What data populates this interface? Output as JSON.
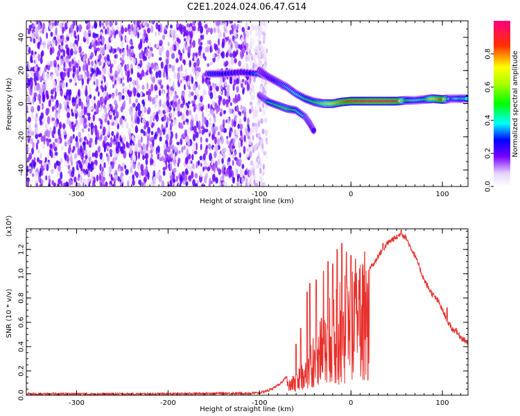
{
  "title": "C2E1.2024.024.06.47.G14",
  "chart_data": [
    {
      "type": "heatmap",
      "xlabel": "Height of straight line (km)",
      "ylabel": "Frequency (Hz)",
      "xlim": [
        -355,
        128
      ],
      "ylim": [
        -50,
        50
      ],
      "xticks": [
        -300,
        -200,
        -100,
        0,
        100
      ],
      "yticks": [
        -40,
        -20,
        0,
        20,
        40
      ],
      "xtick_labels": [
        "-300",
        "-200",
        "-100",
        "0",
        "100"
      ],
      "ytick_labels": [
        "-40",
        "-20",
        "0",
        "20",
        "40"
      ],
      "noise_region": {
        "x": [
          -355,
          -100
        ],
        "y": [
          -50,
          50
        ]
      },
      "ridge": [
        {
          "x": -100,
          "y": 20,
          "amp": 0.15
        },
        {
          "x": -90,
          "y": 16,
          "amp": 0.22
        },
        {
          "x": -80,
          "y": 13,
          "amp": 0.3
        },
        {
          "x": -70,
          "y": 10,
          "amp": 0.35
        },
        {
          "x": -60,
          "y": 6,
          "amp": 0.38
        },
        {
          "x": -50,
          "y": 3,
          "amp": 0.45
        },
        {
          "x": -40,
          "y": 1,
          "amp": 0.5
        },
        {
          "x": -30,
          "y": 0,
          "amp": 0.6
        },
        {
          "x": -20,
          "y": 0,
          "amp": 0.72
        },
        {
          "x": -10,
          "y": 1,
          "amp": 0.8
        },
        {
          "x": 0,
          "y": 1.5,
          "amp": 0.88
        },
        {
          "x": 10,
          "y": 1.5,
          "amp": 0.92
        },
        {
          "x": 20,
          "y": 1.5,
          "amp": 0.95
        },
        {
          "x": 30,
          "y": 1.5,
          "amp": 0.95
        },
        {
          "x": 40,
          "y": 1.5,
          "amp": 0.95
        },
        {
          "x": 50,
          "y": 1.5,
          "amp": 0.92
        },
        {
          "x": 60,
          "y": 2,
          "amp": 0.5
        },
        {
          "x": 70,
          "y": 2,
          "amp": 0.4
        },
        {
          "x": 80,
          "y": 2.5,
          "amp": 0.45
        },
        {
          "x": 90,
          "y": 3,
          "amp": 0.7
        },
        {
          "x": 100,
          "y": 2.5,
          "amp": 0.85
        },
        {
          "x": 110,
          "y": 3,
          "amp": 0.3
        },
        {
          "x": 120,
          "y": 3,
          "amp": 0.45
        },
        {
          "x": 128,
          "y": 3,
          "amp": 0.4
        }
      ],
      "branches": [
        [
          {
            "x": -155,
            "y": 18,
            "amp": 0.3
          },
          {
            "x": -140,
            "y": 18,
            "amp": 0.28
          },
          {
            "x": -120,
            "y": 19,
            "amp": 0.2
          },
          {
            "x": -100,
            "y": 18,
            "amp": 0.35
          },
          {
            "x": -90,
            "y": 16,
            "amp": 0.45
          },
          {
            "x": -80,
            "y": 13,
            "amp": 0.5
          },
          {
            "x": -72,
            "y": 10,
            "amp": 0.45
          }
        ],
        [
          {
            "x": -100,
            "y": 5,
            "amp": 0.3
          },
          {
            "x": -95,
            "y": 3,
            "amp": 0.3
          },
          {
            "x": -90,
            "y": 1,
            "amp": 0.45
          },
          {
            "x": -80,
            "y": -1,
            "amp": 0.5
          },
          {
            "x": -70,
            "y": -3,
            "amp": 0.55
          },
          {
            "x": -60,
            "y": -4,
            "amp": 0.45
          },
          {
            "x": -50,
            "y": -8,
            "amp": 0.4
          },
          {
            "x": -45,
            "y": -12,
            "amp": 0.3
          },
          {
            "x": -40,
            "y": -17,
            "amp": 0.2
          }
        ]
      ],
      "colorbar": {
        "label": "Normalized spectral amplitude",
        "range": [
          0,
          1
        ],
        "ticks": [
          0.0,
          0.2,
          0.4,
          0.6,
          0.8
        ],
        "tick_labels": [
          "0.0",
          "0.2",
          "0.4",
          "0.6",
          "0.8"
        ]
      }
    },
    {
      "type": "line",
      "xlabel": "Height of straight line (km)",
      "ylabel": "SNR (10 * v/v)",
      "scale_label": "(x10⁴)",
      "xlim": [
        -355,
        128
      ],
      "ylim": [
        0,
        1.37
      ],
      "xticks": [
        -300,
        -200,
        -100,
        0,
        100
      ],
      "yticks": [
        0.0,
        0.2,
        0.4,
        0.6,
        0.8,
        1.0,
        1.2
      ],
      "xtick_labels": [
        "-300",
        "-200",
        "-100",
        "0",
        "100"
      ],
      "ytick_labels": [
        "0.0",
        "0.2",
        "0.4",
        "0.6",
        "0.8",
        "1.0",
        "1.2"
      ],
      "color": "#e8302c",
      "series": [
        {
          "x": [
            -355,
            -300,
            -250,
            -200,
            -150,
            -110,
            -100,
            -90,
            -80,
            -70,
            -60,
            -55,
            -50,
            -45,
            -40,
            -35,
            -30,
            -25,
            -20,
            -15,
            -10,
            -5,
            0,
            5,
            10,
            15,
            20,
            25,
            30,
            35,
            40,
            45,
            50,
            55,
            60,
            65,
            70,
            75,
            80,
            85,
            90,
            95,
            100,
            105,
            110,
            115,
            120,
            128
          ],
          "y": [
            0.01,
            0.01,
            0.01,
            0.01,
            0.015,
            0.015,
            0.02,
            0.04,
            0.08,
            0.15,
            0.22,
            0.28,
            0.35,
            0.45,
            0.5,
            0.55,
            0.62,
            0.7,
            0.75,
            0.8,
            0.85,
            0.9,
            0.92,
            0.95,
            0.97,
            1.0,
            1.05,
            1.08,
            1.15,
            1.2,
            1.25,
            1.28,
            1.3,
            1.33,
            1.3,
            1.22,
            1.15,
            1.05,
            0.95,
            0.88,
            0.82,
            0.78,
            0.7,
            0.62,
            0.55,
            0.52,
            0.48,
            0.43
          ]
        }
      ],
      "spikes": [
        {
          "x": -60,
          "y": 0.42
        },
        {
          "x": -55,
          "y": 0.55
        },
        {
          "x": -48,
          "y": 0.85
        },
        {
          "x": -45,
          "y": 0.92
        },
        {
          "x": -38,
          "y": 0.95
        },
        {
          "x": -30,
          "y": 1.02
        },
        {
          "x": -25,
          "y": 1.1
        },
        {
          "x": -20,
          "y": 1.08
        },
        {
          "x": -15,
          "y": 1.2
        },
        {
          "x": -10,
          "y": 1.25
        },
        {
          "x": -5,
          "y": 1.18
        },
        {
          "x": 0,
          "y": 1.15
        },
        {
          "x": 5,
          "y": 1.12
        },
        {
          "x": 15,
          "y": 1.18
        },
        {
          "x": 35,
          "y": 1.25
        },
        {
          "x": 55,
          "y": 1.36
        },
        {
          "x": 105,
          "y": 0.72
        },
        {
          "x": 115,
          "y": 0.55
        }
      ]
    }
  ]
}
